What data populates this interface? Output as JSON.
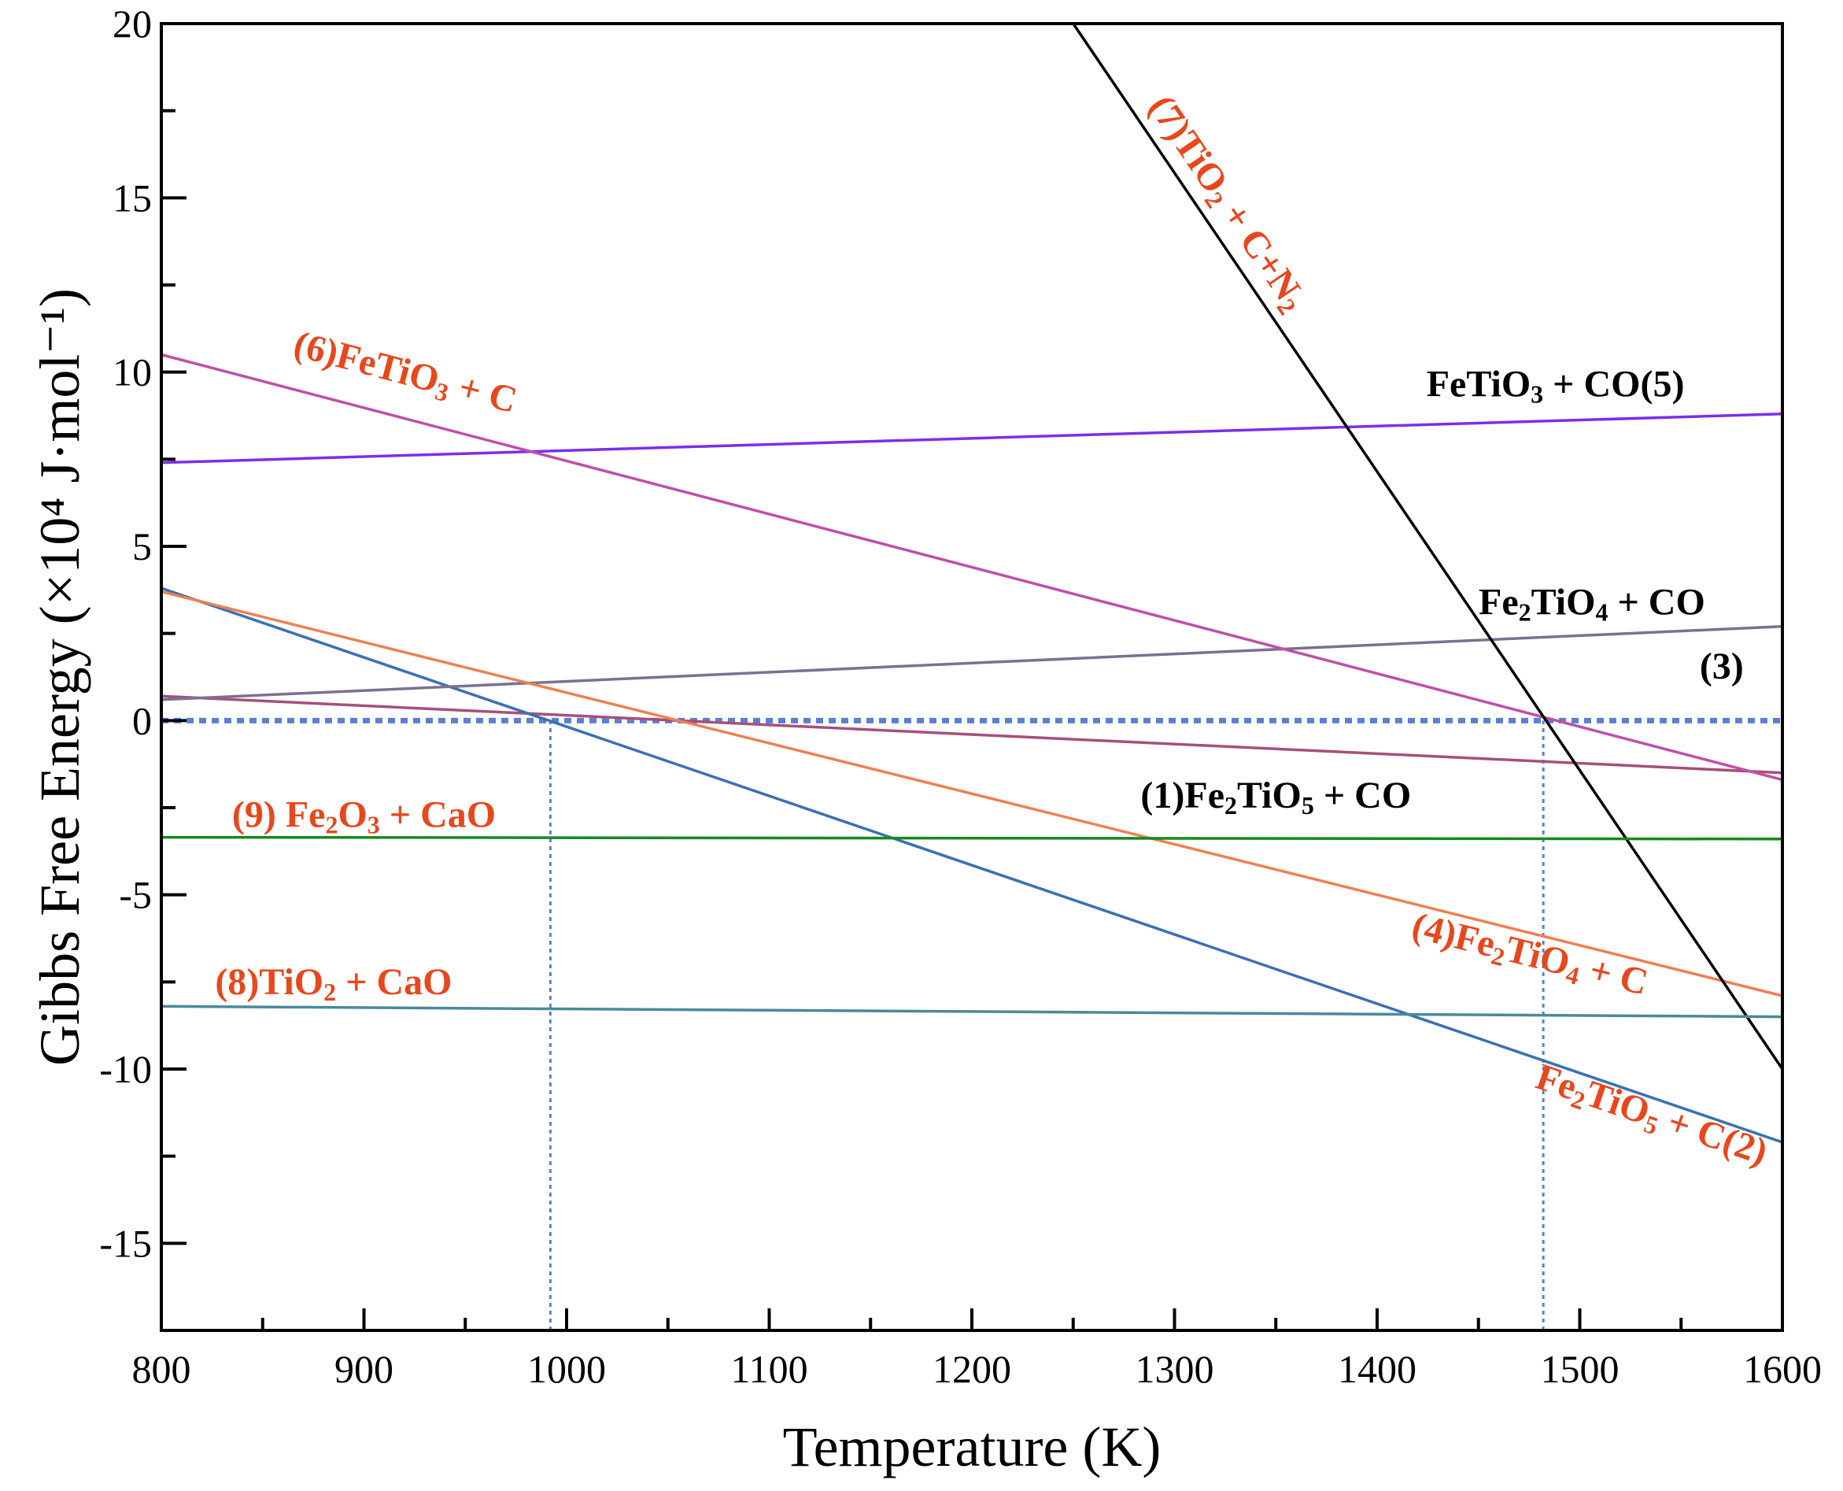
{
  "chart_data": {
    "type": "line",
    "title": "",
    "xlabel": "Temperature (K)",
    "ylabel": "Gibbs Free Energy (×10⁴ J·mol⁻¹)",
    "xlim": [
      800,
      1600
    ],
    "ylim": [
      -17.5,
      20
    ],
    "xticks": [
      "800",
      "900",
      "1000",
      "1100",
      "1200",
      "1300",
      "1400",
      "1500",
      "1600"
    ],
    "yticks": [
      "20",
      "15",
      "10",
      "5",
      "0",
      "-5",
      "-10",
      "-15"
    ],
    "grid": false,
    "series": [
      {
        "id": "s1",
        "name": "(1)Fe2TiO5 + CO",
        "color": "#a6507a",
        "x": [
          800,
          1600
        ],
        "y": [
          0.7,
          -1.5
        ]
      },
      {
        "id": "s2",
        "name": "Fe2TiO5 + C(2)",
        "color": "#3b70b5",
        "x": [
          800,
          1600
        ],
        "y": [
          3.8,
          -12.1
        ]
      },
      {
        "id": "s3",
        "name": "Fe2TiO4 + CO (3)",
        "color": "#7d7090",
        "x": [
          800,
          1600
        ],
        "y": [
          0.6,
          2.7
        ]
      },
      {
        "id": "s4",
        "name": "(4)Fe2TiO4 + C",
        "color": "#f08050",
        "x": [
          800,
          1600
        ],
        "y": [
          3.7,
          -7.9
        ]
      },
      {
        "id": "s5",
        "name": "FeTiO3 + CO(5)",
        "color": "#7d2ee8",
        "x": [
          800,
          1600
        ],
        "y": [
          7.4,
          8.8
        ]
      },
      {
        "id": "s6",
        "name": "(6)FeTiO3 + C",
        "color": "#c04fa8",
        "x": [
          800,
          1600
        ],
        "y": [
          10.5,
          -1.7
        ]
      },
      {
        "id": "s7",
        "name": "(7)TiO2 + C+N2",
        "color": "#000000",
        "x": [
          1250,
          1600
        ],
        "y": [
          20,
          -10
        ]
      },
      {
        "id": "s8",
        "name": "(8)TiO2 + CaO",
        "color": "#4a8a9a",
        "x": [
          800,
          1600
        ],
        "y": [
          -8.2,
          -8.5
        ]
      },
      {
        "id": "s9",
        "name": "(9) Fe2O3 + CaO",
        "color": "#138a1e",
        "x": [
          800,
          1600
        ],
        "y": [
          -3.35,
          -3.4
        ]
      }
    ],
    "reference_lines": [
      {
        "id": "zero",
        "orientation": "horizontal",
        "value": 0,
        "from": 800,
        "to": 1600,
        "color": "#5b7fd6",
        "style": "dotted"
      },
      {
        "id": "v1",
        "orientation": "vertical",
        "value": 992,
        "from": -17.5,
        "to": 0,
        "color": "#5b7fd6",
        "style": "dotted"
      },
      {
        "id": "v2",
        "orientation": "vertical",
        "value": 1482,
        "from": -17.5,
        "to": 0,
        "color": "#5b7fd6",
        "style": "dotted"
      }
    ],
    "annotations": [
      {
        "series": "s7",
        "text": "(7)TiO2 + C+N2",
        "color": "#e8471c",
        "at_x": 1325,
        "at_y": 14.8,
        "rotation": "along-line",
        "parts": [
          [
            "(7)TiO",
            ""
          ],
          [
            "2",
            "sub"
          ],
          [
            " + C+N",
            ""
          ],
          [
            "2",
            "sub"
          ]
        ]
      },
      {
        "series": "s5",
        "text": "FeTiO3 + CO(5)",
        "color": "#000000",
        "at_x": 1488,
        "at_y": 9.55,
        "rotation": "none",
        "parts": [
          [
            "FeTiO",
            ""
          ],
          [
            "3",
            "sub"
          ],
          [
            " + CO(5)",
            ""
          ]
        ]
      },
      {
        "series": "s6",
        "text": "(6)FeTiO3 + C",
        "color": "#e8471c",
        "at_x": 920,
        "at_y": 9.9,
        "rotation": "along-line",
        "parts": [
          [
            "(6)FeTiO",
            ""
          ],
          [
            "3",
            "sub"
          ],
          [
            " + C",
            ""
          ]
        ]
      },
      {
        "series": "s3",
        "text": "Fe2TiO4 + CO",
        "color": "#000000",
        "at_x": 1506,
        "at_y": 3.3,
        "rotation": "none",
        "parts": [
          [
            "Fe",
            ""
          ],
          [
            "2",
            "sub"
          ],
          [
            "TiO",
            ""
          ],
          [
            "4",
            "sub"
          ],
          [
            " + CO",
            ""
          ]
        ]
      },
      {
        "series": "s3",
        "text": "(3)",
        "color": "#000000",
        "at_x": 1570,
        "at_y": 1.45,
        "rotation": "none",
        "parts": [
          [
            "(3)",
            ""
          ]
        ]
      },
      {
        "series": "s1",
        "text": "(1)Fe2TiO5 + CO",
        "color": "#000000",
        "at_x": 1350,
        "at_y": -2.25,
        "rotation": "none",
        "parts": [
          [
            "(1)Fe",
            ""
          ],
          [
            "2",
            "sub"
          ],
          [
            "TiO",
            ""
          ],
          [
            "5",
            "sub"
          ],
          [
            " + CO",
            ""
          ]
        ]
      },
      {
        "series": "s9",
        "text": "(9) Fe2O3 + CaO",
        "color": "#e8471c",
        "at_x": 900,
        "at_y": -2.8,
        "rotation": "none",
        "parts": [
          [
            "(9) Fe",
            ""
          ],
          [
            "2",
            "sub"
          ],
          [
            "O",
            ""
          ],
          [
            "3",
            "sub"
          ],
          [
            " + CaO",
            ""
          ]
        ]
      },
      {
        "series": "s4",
        "text": "(4)Fe2TiO4 + C",
        "color": "#e8471c",
        "at_x": 1475,
        "at_y": -6.8,
        "rotation": "along-line",
        "parts": [
          [
            "(4)Fe",
            ""
          ],
          [
            "2",
            "sub"
          ],
          [
            "TiO",
            ""
          ],
          [
            "4",
            "sub"
          ],
          [
            " + C",
            ""
          ]
        ]
      },
      {
        "series": "s8",
        "text": "(8)TiO2 + CaO",
        "color": "#e8471c",
        "at_x": 885,
        "at_y": -7.6,
        "rotation": "none",
        "parts": [
          [
            "(8)TiO",
            ""
          ],
          [
            "2",
            "sub"
          ],
          [
            " + CaO",
            ""
          ]
        ]
      },
      {
        "series": "s2",
        "text": "Fe2TiO5 + C(2)",
        "color": "#e8471c",
        "at_x": 1535,
        "at_y": -11.4,
        "rotation": "along-line",
        "parts": [
          [
            "Fe",
            ""
          ],
          [
            "2",
            "sub"
          ],
          [
            "TiO",
            ""
          ],
          [
            "5",
            "sub"
          ],
          [
            " + C(2)",
            ""
          ]
        ]
      }
    ]
  }
}
